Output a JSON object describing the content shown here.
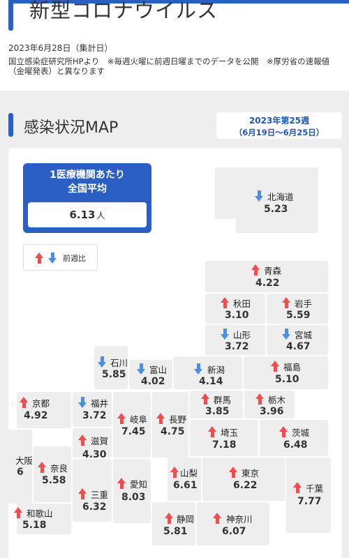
{
  "page": {
    "title": "新型コロナウイルス",
    "date_line": "2023年6月28日（集計日）",
    "source_note": "国立感染症研究所HPより　※毎週火曜に前週日曜までのデータを公開　※厚労省の速報値（金曜発表）と異なります"
  },
  "section": {
    "title": "感染状況MAP",
    "week_label": "2023年第25週",
    "week_range": "（6月19日～6月25日）"
  },
  "national_average": {
    "label_line1": "1医療機関あたり",
    "label_line2": "全国平均",
    "value": "6.13",
    "unit": "人"
  },
  "legend": {
    "label": "前週比"
  },
  "colors": {
    "accent": "#2b5fc4",
    "up_arrow": "#f04e4e",
    "down_arrow": "#4a90e2",
    "tile": "#eeeeee"
  },
  "prefectures": [
    {
      "id": "hokkaido",
      "name": "北海道",
      "value": "5.23",
      "trend": "down"
    },
    {
      "id": "aomori",
      "name": "青森",
      "value": "4.22",
      "trend": "up"
    },
    {
      "id": "akita",
      "name": "秋田",
      "value": "3.10",
      "trend": "up"
    },
    {
      "id": "iwate",
      "name": "岩手",
      "value": "5.59",
      "trend": "up"
    },
    {
      "id": "yamagata",
      "name": "山形",
      "value": "3.72",
      "trend": "down"
    },
    {
      "id": "miyagi",
      "name": "宮城",
      "value": "4.67",
      "trend": "down"
    },
    {
      "id": "ishikawa",
      "name": "石川",
      "value": "5.85",
      "trend": "down"
    },
    {
      "id": "toyama",
      "name": "富山",
      "value": "4.02",
      "trend": "down"
    },
    {
      "id": "niigata",
      "name": "新潟",
      "value": "4.14",
      "trend": "down"
    },
    {
      "id": "fukushima",
      "name": "福島",
      "value": "5.10",
      "trend": "up"
    },
    {
      "id": "kyoto",
      "name": "京都",
      "value": "4.92",
      "trend": "up"
    },
    {
      "id": "fukui",
      "name": "福井",
      "value": "3.72",
      "trend": "down"
    },
    {
      "id": "gifu",
      "name": "岐阜",
      "value": "7.45",
      "trend": "up"
    },
    {
      "id": "nagano",
      "name": "長野",
      "value": "4.75",
      "trend": "up"
    },
    {
      "id": "gunma",
      "name": "群馬",
      "value": "3.85",
      "trend": "up"
    },
    {
      "id": "tochigi",
      "name": "栃木",
      "value": "3.96",
      "trend": "up"
    },
    {
      "id": "osaka",
      "name": "大阪",
      "value": "6",
      "trend": "none"
    },
    {
      "id": "shiga",
      "name": "滋賀",
      "value": "4.30",
      "trend": "up"
    },
    {
      "id": "saitama",
      "name": "埼玉",
      "value": "7.18",
      "trend": "up"
    },
    {
      "id": "ibaraki",
      "name": "茨城",
      "value": "6.48",
      "trend": "up"
    },
    {
      "id": "nara",
      "name": "奈良",
      "value": "5.58",
      "trend": "up"
    },
    {
      "id": "aichi",
      "name": "愛知",
      "value": "8.03",
      "trend": "up"
    },
    {
      "id": "yamanashi",
      "name": "山梨",
      "value": "6.61",
      "trend": "up"
    },
    {
      "id": "tokyo",
      "name": "東京",
      "value": "6.22",
      "trend": "up"
    },
    {
      "id": "chiba",
      "name": "千葉",
      "value": "7.77",
      "trend": "up"
    },
    {
      "id": "mie",
      "name": "三重",
      "value": "6.32",
      "trend": "up"
    },
    {
      "id": "wakayama",
      "name": "和歌山",
      "value": "5.18",
      "trend": "up"
    },
    {
      "id": "shizuoka",
      "name": "静岡",
      "value": "5.81",
      "trend": "up"
    },
    {
      "id": "kanagawa",
      "name": "神奈川",
      "value": "6.07",
      "trend": "up"
    }
  ]
}
